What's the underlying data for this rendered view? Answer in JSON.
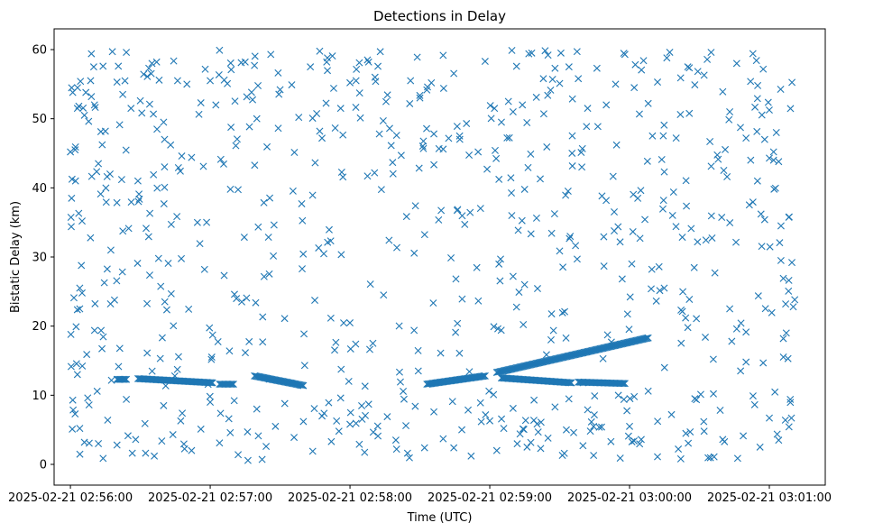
{
  "chart_data": {
    "type": "scatter",
    "title": "Detections in Delay",
    "xlabel": "Time (UTC)",
    "ylabel": "Bistatic Delay (km)",
    "marker": "x",
    "color": "#1f77b4",
    "x_unit": "seconds after 2025-02-21 02:56:00",
    "xlim": [
      -7,
      324
    ],
    "ylim": [
      -3,
      63
    ],
    "x_ticks": [
      {
        "value": 0,
        "label": "2025-02-21 02:56:00"
      },
      {
        "value": 60,
        "label": "2025-02-21 02:57:00"
      },
      {
        "value": 120,
        "label": "2025-02-21 02:58:00"
      },
      {
        "value": 180,
        "label": "2025-02-21 02:59:00"
      },
      {
        "value": 240,
        "label": "2025-02-21 03:00:00"
      },
      {
        "value": 300,
        "label": "2025-02-21 03:01:00"
      }
    ],
    "y_ticks": [
      0,
      10,
      20,
      30,
      40,
      50,
      60
    ],
    "grid": false,
    "tracks": [
      {
        "x_start": 20,
        "x_end": 24,
        "y_start": 12.3,
        "y_end": 12.3
      },
      {
        "x_start": 29,
        "x_end": 61,
        "y_start": 12.4,
        "y_end": 11.8
      },
      {
        "x_start": 64,
        "x_end": 70,
        "y_start": 11.6,
        "y_end": 11.6
      },
      {
        "x_start": 79,
        "x_end": 100,
        "y_start": 12.8,
        "y_end": 11.4
      },
      {
        "x_start": 153,
        "x_end": 178,
        "y_start": 11.6,
        "y_end": 12.8
      },
      {
        "x_start": 183,
        "x_end": 248,
        "y_start": 13.3,
        "y_end": 18.3
      },
      {
        "x_start": 185,
        "x_end": 215,
        "y_start": 12.5,
        "y_end": 11.8
      },
      {
        "x_start": 218,
        "x_end": 238,
        "y_start": 11.9,
        "y_end": 11.7
      }
    ],
    "noise": {
      "count": 560,
      "x_range": [
        0,
        312
      ],
      "y_range": [
        0.5,
        60
      ],
      "seed": 20250221
    },
    "series": [
      {
        "name": "detections",
        "points": [
          [
            0,
            45.2
          ],
          [
            1,
            53.8
          ],
          [
            0.5,
            38.5
          ],
          [
            1.5,
            24.1
          ],
          [
            0.2,
            18.8
          ],
          [
            1,
            9.3
          ],
          [
            0.8,
            5.1
          ],
          [
            2,
            45.5
          ],
          [
            3,
            51.5
          ],
          [
            4,
            25.5
          ],
          [
            5,
            24.8
          ],
          [
            3,
            13.0
          ],
          [
            2,
            7.3
          ],
          [
            5,
            35.2
          ],
          [
            4,
            22.5
          ],
          [
            6,
            50.5
          ],
          [
            6,
            3.2
          ],
          [
            7,
            15.9
          ],
          [
            9,
            59.4
          ],
          [
            9,
            53.2
          ],
          [
            10,
            57.5
          ],
          [
            12,
            43.5
          ],
          [
            14,
            57.6
          ],
          [
            15,
            48.2
          ],
          [
            17,
            42.0
          ],
          [
            18,
            59.7
          ],
          [
            20,
            55.3
          ],
          [
            22,
            41.2
          ],
          [
            24,
            59.6
          ],
          [
            26,
            51.5
          ],
          [
            30,
            52.6
          ],
          [
            33,
            56.1
          ],
          [
            34,
            52.1
          ],
          [
            35,
            58.0
          ],
          [
            37,
            58.2
          ],
          [
            40,
            49.5
          ],
          [
            43,
            46.2
          ],
          [
            46,
            55.5
          ],
          [
            50,
            55.0
          ],
          [
            52,
            44.4
          ],
          [
            56,
            52.3
          ],
          [
            60,
            55.5
          ],
          [
            64,
            59.9
          ],
          [
            66,
            55.6
          ],
          [
            69,
            57.1
          ],
          [
            71,
            46.1
          ],
          [
            75,
            58.2
          ],
          [
            79,
            57.7
          ],
          [
            80,
            50.0
          ],
          [
            86,
            59.3
          ],
          [
            90,
            54.2
          ],
          [
            95,
            54.9
          ],
          [
            98,
            50.2
          ],
          [
            103,
            57.5
          ],
          [
            107,
            48.2
          ],
          [
            110,
            58.2
          ],
          [
            113,
            54.4
          ],
          [
            116,
            51.5
          ],
          [
            120,
            55.2
          ],
          [
            124,
            58.1
          ],
          [
            128,
            58.2
          ],
          [
            131,
            55.4
          ],
          [
            133,
            59.7
          ],
          [
            137,
            48.6
          ],
          [
            140,
            47.6
          ],
          [
            142,
            44.7
          ],
          [
            146,
            55.5
          ],
          [
            150,
            53.0
          ],
          [
            156,
            47.8
          ],
          [
            160,
            45.6
          ],
          [
            166,
            48.9
          ],
          [
            170,
            49.3
          ],
          [
            175,
            45.2
          ],
          [
            178,
            58.3
          ],
          [
            182,
            51.5
          ],
          [
            185,
            49.5
          ],
          [
            188,
            52.5
          ],
          [
            190,
            51.0
          ],
          [
            194,
            52.0
          ],
          [
            198,
            59.5
          ],
          [
            200,
            53.1
          ],
          [
            203,
            55.8
          ],
          [
            205,
            59.2
          ],
          [
            208,
            57.3
          ],
          [
            210,
            55.1
          ],
          [
            214,
            57.5
          ],
          [
            218,
            55.8
          ],
          [
            222,
            51.5
          ],
          [
            226,
            57.3
          ],
          [
            230,
            52.0
          ],
          [
            234,
            55.0
          ],
          [
            238,
            59.3
          ],
          [
            242,
            54.5
          ],
          [
            246,
            58.4
          ],
          [
            248,
            52.2
          ],
          [
            252,
            55.3
          ],
          [
            256,
            58.8
          ],
          [
            260,
            47.2
          ],
          [
            265,
            57.5
          ],
          [
            268,
            54.9
          ],
          [
            272,
            56.3
          ],
          [
            275,
            59.6
          ],
          [
            280,
            53.9
          ],
          [
            283,
            51.0
          ],
          [
            286,
            58.0
          ],
          [
            290,
            47.2
          ],
          [
            292,
            44.0
          ],
          [
            295,
            54.8
          ],
          [
            298,
            47.0
          ],
          [
            300,
            44.3
          ],
          [
            303,
            48.0
          ],
          [
            304,
            43.8
          ],
          [
            305,
            34.5
          ],
          [
            306,
            26.9
          ],
          [
            307,
            23.2
          ],
          [
            308,
            15.3
          ],
          [
            309,
            9.4
          ],
          [
            306,
            18.2
          ],
          [
            304,
            3.5
          ],
          [
            300,
            6.7
          ],
          [
            296,
            2.5
          ],
          [
            293,
            9.9
          ],
          [
            290,
            14.8
          ],
          [
            286,
            19.6
          ],
          [
            283,
            22.5
          ],
          [
            280,
            3.6
          ],
          [
            276,
            10.2
          ],
          [
            272,
            4.8
          ],
          [
            268,
            9.5
          ],
          [
            265,
            19.8
          ],
          [
            262,
            0.8
          ],
          [
            258,
            7.2
          ],
          [
            255,
            14.0
          ],
          [
            252,
            1.1
          ],
          [
            248,
            10.6
          ],
          [
            245,
            3.6
          ],
          [
            242,
            9.8
          ],
          [
            240,
            5.5
          ],
          [
            236,
            0.9
          ],
          [
            232,
            3.3
          ],
          [
            228,
            5.4
          ],
          [
            225,
            9.9
          ],
          [
            222,
            7.9
          ],
          [
            220,
            2.7
          ],
          [
            216,
            4.6
          ],
          [
            212,
            1.6
          ],
          [
            208,
            8.3
          ],
          [
            205,
            3.8
          ],
          [
            202,
            6.1
          ],
          [
            199,
            9.3
          ],
          [
            196,
            2.5
          ],
          [
            193,
            4.4
          ],
          [
            190,
            8.1
          ],
          [
            186,
            5.2
          ],
          [
            183,
            2.0
          ],
          [
            180,
            6.3
          ],
          [
            176,
            8.9
          ],
          [
            172,
            1.2
          ],
          [
            168,
            5.0
          ],
          [
            164,
            9.1
          ],
          [
            160,
            3.7
          ],
          [
            156,
            7.6
          ],
          [
            152,
            2.4
          ],
          [
            148,
            8.4
          ],
          [
            144,
            5.6
          ],
          [
            140,
            2.2
          ],
          [
            136,
            6.9
          ],
          [
            132,
            4.1
          ],
          [
            128,
            8.7
          ],
          [
            124,
            2.9
          ],
          [
            120,
            5.8
          ],
          [
            116,
            9.6
          ],
          [
            112,
            3.3
          ],
          [
            108,
            7.0
          ],
          [
            104,
            1.9
          ],
          [
            100,
            6.2
          ],
          [
            96,
            3.9
          ],
          [
            92,
            8.8
          ],
          [
            88,
            5.5
          ],
          [
            84,
            2.6
          ],
          [
            80,
            8.0
          ],
          [
            76,
            4.7
          ],
          [
            72,
            1.4
          ],
          [
            68,
            6.6
          ],
          [
            64,
            3.1
          ],
          [
            60,
            9.0
          ],
          [
            56,
            5.1
          ],
          [
            52,
            2.0
          ],
          [
            48,
            7.4
          ],
          [
            44,
            4.3
          ],
          [
            40,
            8.5
          ],
          [
            36,
            1.2
          ],
          [
            32,
            5.9
          ],
          [
            28,
            3.6
          ],
          [
            24,
            9.4
          ],
          [
            20,
            2.8
          ],
          [
            16,
            6.4
          ],
          [
            12,
            3.0
          ],
          [
            8,
            8.6
          ],
          [
            4,
            5.2
          ]
        ]
      }
    ]
  }
}
